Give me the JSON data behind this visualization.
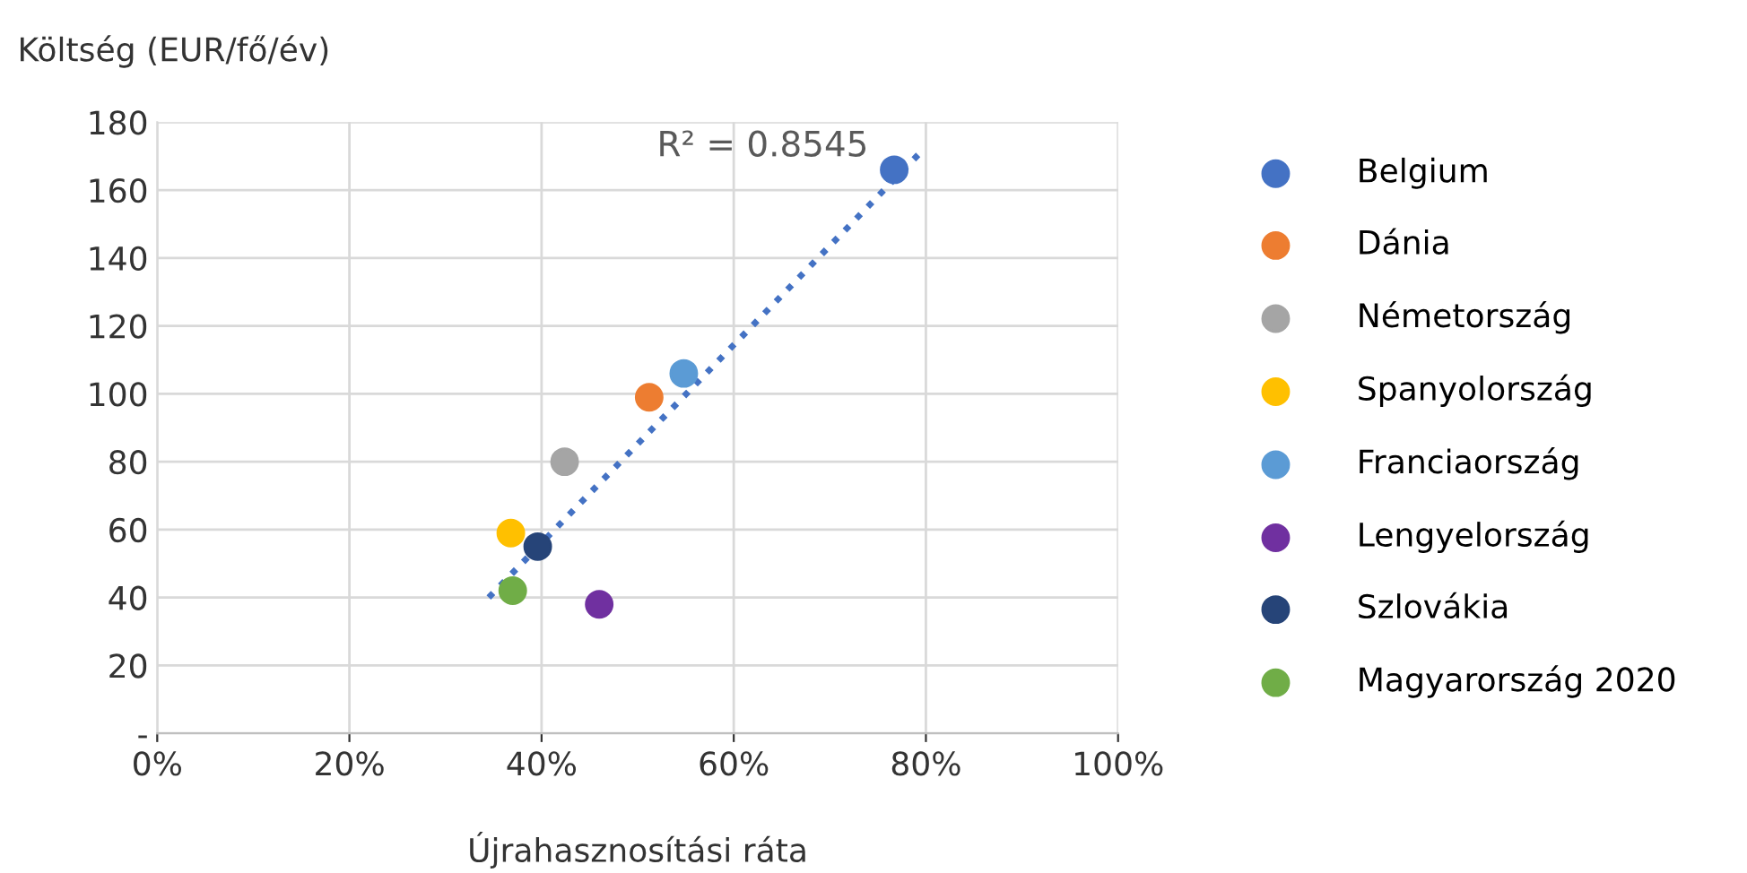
{
  "chart_data": {
    "type": "scatter",
    "xlabel": "Újrahasznosítási ráta",
    "ylabel": "Költség (EUR/fő/év)",
    "annotations": [
      "R² = 0.8545"
    ],
    "series": [
      {
        "name": "Belgium",
        "color": "#4472c4",
        "x": [
          76.7
        ],
        "values": [
          166
        ]
      },
      {
        "name": "Dánia",
        "color": "#ed7d31",
        "x": [
          51.2
        ],
        "values": [
          99
        ]
      },
      {
        "name": "Németország",
        "color": "#a5a5a5",
        "x": [
          42.4
        ],
        "values": [
          80
        ]
      },
      {
        "name": "Spanyolország",
        "color": "#ffc000",
        "x": [
          36.8
        ],
        "values": [
          59
        ]
      },
      {
        "name": "Franciaország",
        "color": "#5b9bd5",
        "x": [
          54.8
        ],
        "values": [
          106
        ]
      },
      {
        "name": "Lengyelország",
        "color": "#7030a0",
        "x": [
          46
        ],
        "values": [
          38
        ]
      },
      {
        "name": "Szlovákia",
        "color": "#264478",
        "x": [
          39.6
        ],
        "values": [
          55
        ]
      },
      {
        "name": "Magyarország 2020",
        "color": "#70ad47",
        "x": [
          37
        ],
        "values": [
          42
        ]
      },
      {
        "type": "line",
        "color": "#4472c4",
        "line_style": "dotted",
        "marker": "none",
        "x": [
          34.5,
          79.4
        ],
        "values": [
          40,
          171
        ]
      }
    ],
    "xlim": [
      0,
      100
    ],
    "ylim": [
      0,
      180
    ],
    "xticks": [
      {
        "value": 0,
        "label": "0%"
      },
      {
        "value": 20,
        "label": "20%"
      },
      {
        "value": 40,
        "label": "40%"
      },
      {
        "value": 60,
        "label": "60%"
      },
      {
        "value": 80,
        "label": "80%"
      },
      {
        "value": 100,
        "label": "100%"
      }
    ],
    "yticks": [
      {
        "value": 0,
        "label": "-"
      },
      20,
      40,
      60,
      80,
      100,
      120,
      140,
      160,
      180
    ],
    "grid": true,
    "legend": "right",
    "marker": "circle"
  }
}
